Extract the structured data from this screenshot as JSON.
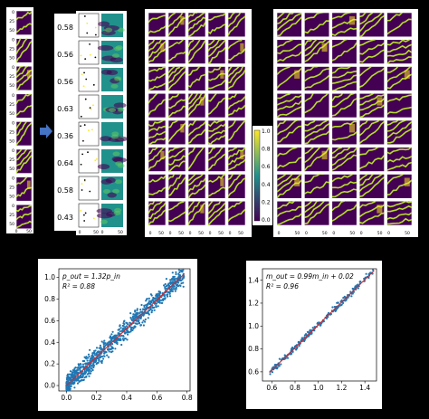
{
  "colors": {
    "background": "#000000",
    "panel": "#ffffff",
    "viridis_low": "#440154",
    "viridis_mid": "#21918c",
    "viridis_high": "#fde725",
    "stripe": "#b5de2b",
    "scatter_point": "#1f77b4",
    "fit_line": "#d62728",
    "arrow": "#4472c4"
  },
  "icons": {
    "arrow": "right-arrow-icon"
  },
  "strip_column": {
    "yticks": [
      "0",
      "25",
      "50"
    ],
    "xticks": [
      "0",
      "50"
    ]
  },
  "value_column": {
    "values": [
      "0.58",
      "0.56",
      "0.56",
      "0.63",
      "0.36",
      "0.64",
      "0.58",
      "0.43"
    ]
  },
  "panel_row_labels": {
    "yticks": [
      "0",
      "50"
    ],
    "xticks": [
      "0",
      "50"
    ]
  },
  "grid_left": {
    "xticks": [
      "0",
      "50"
    ]
  },
  "grid_right": {
    "xticks": [
      "0",
      "50"
    ]
  },
  "colorbar": {
    "ticks": [
      "1.0",
      "0.8",
      "0.6",
      "0.4",
      "0.2",
      "0.0"
    ]
  },
  "chart_data": [
    {
      "type": "scatter",
      "title": "",
      "annotation_line1": "p_out = 1.32p_in",
      "annotation_line2": "R² = 0.88",
      "xlim": [
        -0.05,
        0.82
      ],
      "ylim": [
        -0.05,
        1.08
      ],
      "xticks": [
        "0.0",
        "0.2",
        "0.4",
        "0.6",
        "0.8"
      ],
      "yticks": [
        "0.0",
        "0.2",
        "0.4",
        "0.6",
        "0.8",
        "1.0"
      ],
      "xtick_values": [
        0.0,
        0.2,
        0.4,
        0.6,
        0.8
      ],
      "ytick_values": [
        0.0,
        0.2,
        0.4,
        0.6,
        0.8,
        1.0
      ],
      "fit": {
        "slope": 1.32,
        "intercept": 0.0,
        "x_range": [
          0.0,
          0.78
        ]
      },
      "r2": 0.88,
      "points_approx": [
        [
          0.02,
          0.01
        ],
        [
          0.05,
          0.08
        ],
        [
          0.08,
          0.12
        ],
        [
          0.1,
          0.05
        ],
        [
          0.12,
          0.15
        ],
        [
          0.15,
          0.2
        ],
        [
          0.18,
          0.22
        ],
        [
          0.2,
          0.3
        ],
        [
          0.22,
          0.26
        ],
        [
          0.25,
          0.35
        ],
        [
          0.28,
          0.38
        ],
        [
          0.3,
          0.42
        ],
        [
          0.32,
          0.45
        ],
        [
          0.35,
          0.48
        ],
        [
          0.38,
          0.5
        ],
        [
          0.4,
          0.55
        ],
        [
          0.42,
          0.58
        ],
        [
          0.45,
          0.6
        ],
        [
          0.48,
          0.64
        ],
        [
          0.5,
          0.66
        ],
        [
          0.52,
          0.7
        ],
        [
          0.55,
          0.72
        ],
        [
          0.58,
          0.78
        ],
        [
          0.6,
          0.8
        ],
        [
          0.62,
          0.82
        ],
        [
          0.65,
          0.86
        ],
        [
          0.68,
          0.9
        ],
        [
          0.7,
          0.92
        ],
        [
          0.72,
          0.95
        ],
        [
          0.75,
          0.98
        ]
      ]
    },
    {
      "type": "scatter",
      "title": "",
      "annotation_line1": "m_out = 0.99m_in + 0.02",
      "annotation_line2": "R² = 0.96",
      "xlim": [
        0.52,
        1.5
      ],
      "ylim": [
        0.52,
        1.5
      ],
      "xticks": [
        "0.6",
        "0.8",
        "1.0",
        "1.2",
        "1.4"
      ],
      "yticks": [
        "0.6",
        "0.8",
        "1.0",
        "1.2",
        "1.4"
      ],
      "xtick_values": [
        0.6,
        0.8,
        1.0,
        1.2,
        1.4
      ],
      "ytick_values": [
        0.6,
        0.8,
        1.0,
        1.2,
        1.4
      ],
      "fit": {
        "slope": 0.99,
        "intercept": 0.02,
        "x_range": [
          0.58,
          1.48
        ]
      },
      "r2": 0.96,
      "points_approx": [
        [
          0.62,
          0.64
        ],
        [
          0.66,
          0.67
        ],
        [
          0.7,
          0.71
        ],
        [
          0.74,
          0.75
        ],
        [
          0.78,
          0.79
        ],
        [
          0.8,
          0.82
        ],
        [
          0.84,
          0.85
        ],
        [
          0.88,
          0.9
        ],
        [
          0.92,
          0.93
        ],
        [
          0.96,
          0.97
        ],
        [
          1.0,
          1.01
        ],
        [
          1.04,
          1.05
        ],
        [
          1.08,
          1.1
        ],
        [
          1.12,
          1.13
        ],
        [
          1.16,
          1.17
        ],
        [
          1.2,
          1.21
        ],
        [
          1.24,
          1.25
        ],
        [
          1.28,
          1.29
        ],
        [
          1.32,
          1.33
        ],
        [
          1.36,
          1.37
        ],
        [
          1.4,
          1.41
        ],
        [
          1.44,
          1.45
        ]
      ]
    }
  ]
}
